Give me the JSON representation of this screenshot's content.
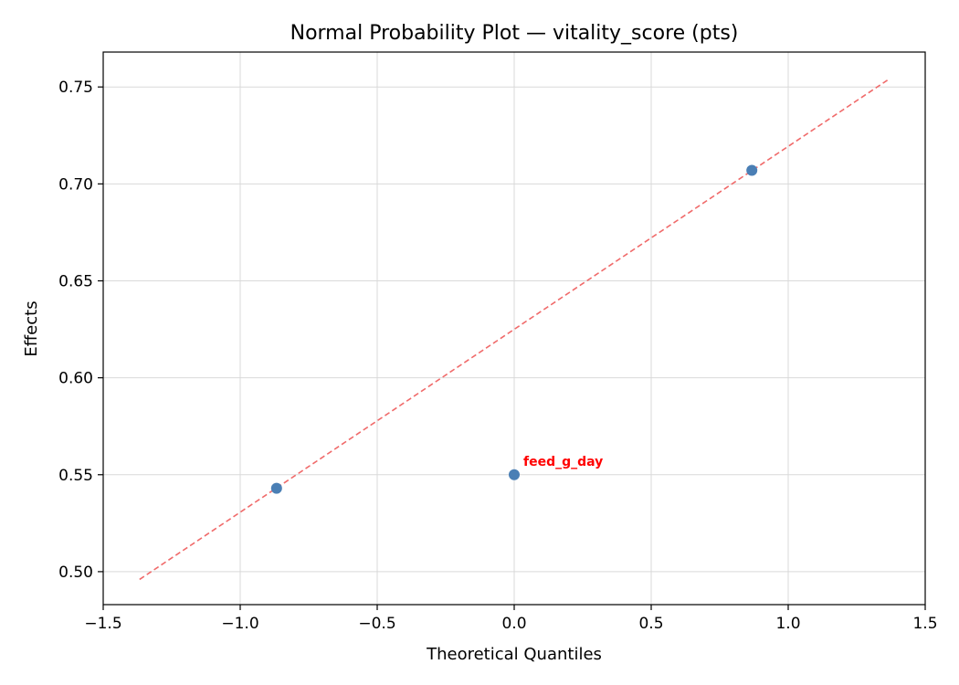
{
  "chart_data": {
    "type": "scatter",
    "title": "Normal Probability Plot — vitality_score (pts)",
    "xlabel": "Theoretical Quantiles",
    "ylabel": "Effects",
    "xlim": [
      -1.5,
      1.5
    ],
    "ylim": [
      0.483,
      0.768
    ],
    "grid": true,
    "x_ticks": [
      -1.5,
      -1.0,
      -0.5,
      0.0,
      0.5,
      1.0,
      1.5
    ],
    "x_tick_labels": [
      "−1.5",
      "−1.0",
      "−0.5",
      "0.0",
      "0.5",
      "1.0",
      "1.5"
    ],
    "y_ticks": [
      0.5,
      0.55,
      0.6,
      0.65,
      0.7,
      0.75
    ],
    "y_tick_labels": [
      "0.50",
      "0.55",
      "0.60",
      "0.65",
      "0.70",
      "0.75"
    ],
    "points": [
      {
        "x": -0.8673,
        "y": 0.543
      },
      {
        "x": 0.0,
        "y": 0.55
      },
      {
        "x": 0.8673,
        "y": 0.707
      }
    ],
    "point_color": "#4a7fb5",
    "reference_line": {
      "x": [
        -1.3673,
        1.3673
      ],
      "y": [
        0.496,
        0.754
      ],
      "color": "#f06a6a",
      "style": "dashed"
    },
    "annotations": [
      {
        "text": "feed_g_day",
        "x": 0.0,
        "y": 0.55,
        "color": "#ff0000"
      }
    ]
  }
}
